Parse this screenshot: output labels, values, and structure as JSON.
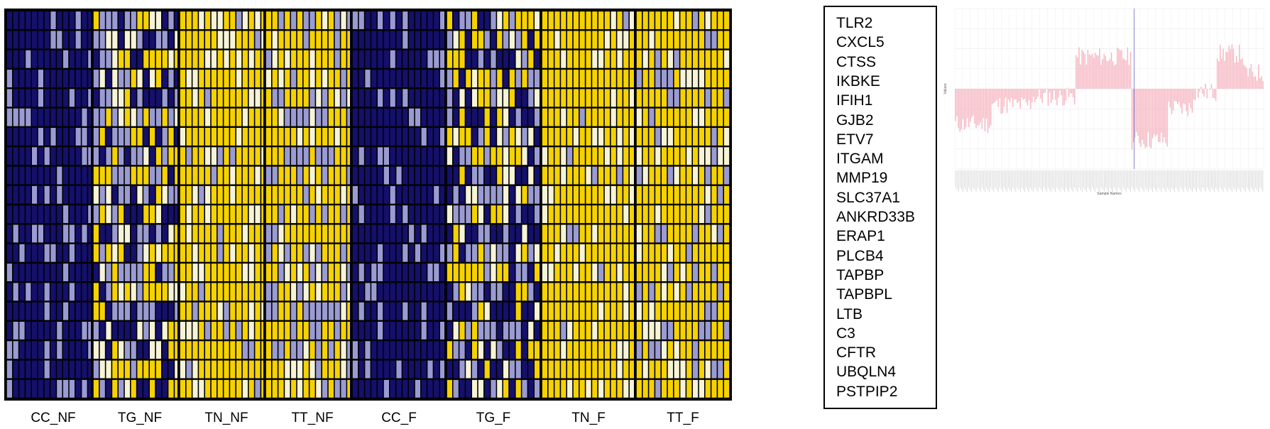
{
  "chart_data": [
    {
      "type": "heatmap",
      "panels": [
        "CC_NF",
        "TG_NF",
        "TN_NF",
        "TT_NF",
        "CC_F",
        "TG_F",
        "TN_F",
        "TT_F"
      ],
      "rows": [
        "TLR2",
        "CXCL5",
        "CTSS",
        "IKBKE",
        "IFIH1",
        "GJB2",
        "ETV7",
        "ITGAM",
        "MMP19",
        "SLC37A1",
        "ANKRD33B",
        "ERAP1",
        "PLCB4",
        "TAPBP",
        "TAPBPL",
        "LTB",
        "C3",
        "CFTR",
        "UBQLN4",
        "PSTPIP2"
      ],
      "columns_per_panel": 15,
      "panel_mean_level": [
        0.1,
        0.55,
        0.95,
        0.8,
        0.05,
        0.5,
        0.97,
        0.85
      ],
      "color_scale": [
        "#15106b",
        "#9b9bd3",
        "#f6f3d6",
        "#f5d200"
      ],
      "legend": "right"
    },
    {
      "type": "bar",
      "xlabel": "Sample Names",
      "ylabel": "Values",
      "n_samples": 210,
      "ylim": [
        -0.5,
        0.5
      ],
      "bar_color": "#f6b6c2",
      "reference_line_color": "#7f7fd8",
      "reference_line_index": 122,
      "segments": [
        {
          "from": 0,
          "to": 25,
          "mean": -0.22
        },
        {
          "from": 25,
          "to": 52,
          "mean": -0.1
        },
        {
          "from": 52,
          "to": 82,
          "mean": -0.05
        },
        {
          "from": 82,
          "to": 120,
          "mean": 0.2
        },
        {
          "from": 120,
          "to": 145,
          "mean": -0.32
        },
        {
          "from": 145,
          "to": 162,
          "mean": -0.12
        },
        {
          "from": 162,
          "to": 178,
          "mean": -0.02
        },
        {
          "from": 178,
          "to": 196,
          "mean": 0.22
        },
        {
          "from": 196,
          "to": 210,
          "mean": 0.1
        }
      ]
    }
  ]
}
